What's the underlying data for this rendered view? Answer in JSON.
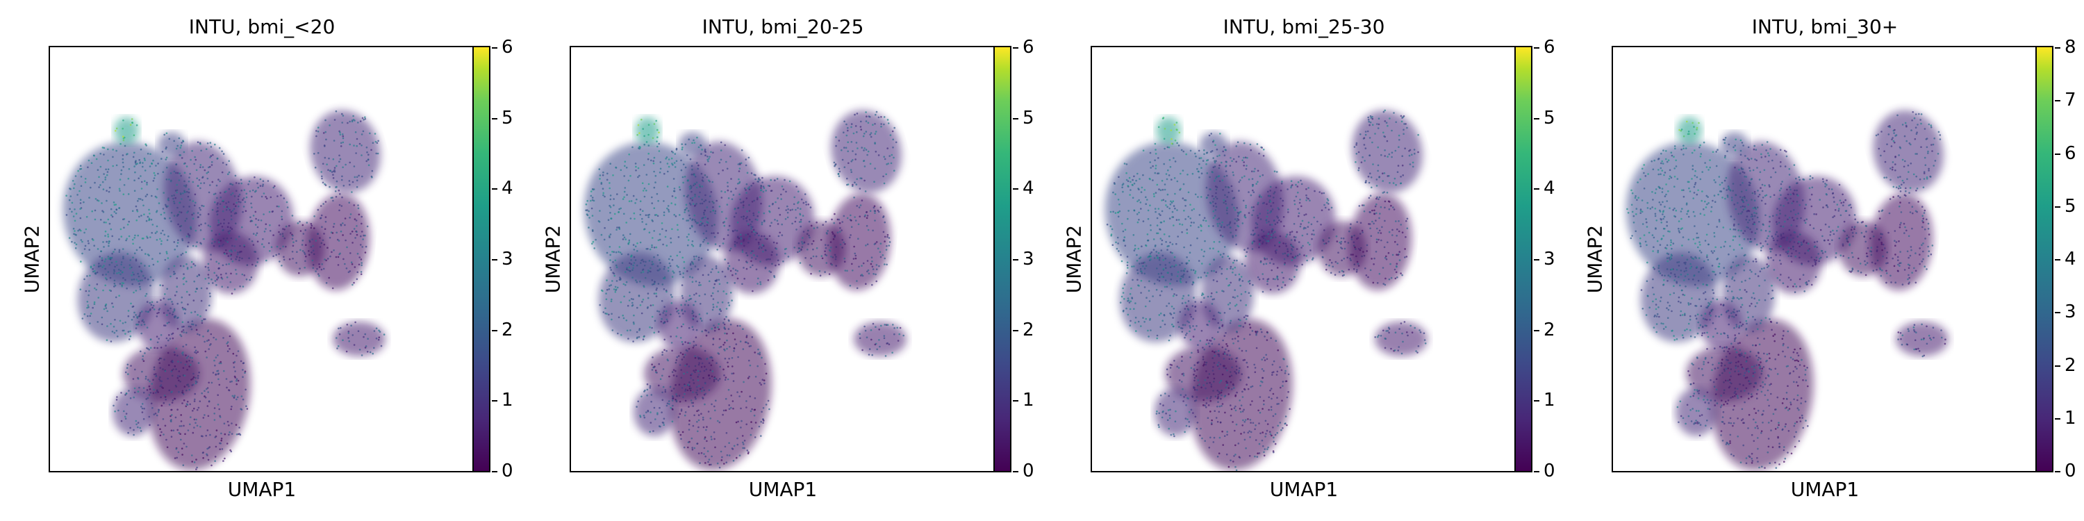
{
  "chart_data": [
    {
      "type": "scatter",
      "title": "INTU, bmi_<20",
      "xlabel": "UMAP1",
      "ylabel": "UMAP2",
      "colorbar": {
        "min": 0,
        "max": 6,
        "ticks": [
          "0",
          "1",
          "2",
          "3",
          "4",
          "5",
          "6"
        ],
        "colormap": "viridis"
      }
    },
    {
      "type": "scatter",
      "title": "INTU, bmi_20-25",
      "xlabel": "UMAP1",
      "ylabel": "UMAP2",
      "colorbar": {
        "min": 0,
        "max": 6,
        "ticks": [
          "0",
          "1",
          "2",
          "3",
          "4",
          "5",
          "6"
        ],
        "colormap": "viridis"
      }
    },
    {
      "type": "scatter",
      "title": "INTU, bmi_25-30",
      "xlabel": "UMAP1",
      "ylabel": "UMAP2",
      "colorbar": {
        "min": 0,
        "max": 6,
        "ticks": [
          "0",
          "1",
          "2",
          "3",
          "4",
          "5",
          "6"
        ],
        "colormap": "viridis"
      }
    },
    {
      "type": "scatter",
      "title": "INTU, bmi_30+",
      "xlabel": "UMAP1",
      "ylabel": "UMAP2",
      "colorbar": {
        "min": 0,
        "max": 8,
        "ticks": [
          "0",
          "1",
          "2",
          "3",
          "4",
          "5",
          "6",
          "7",
          "8"
        ],
        "colormap": "viridis"
      }
    }
  ],
  "colors": {
    "low": "#440154",
    "mid": "#21918c",
    "high": "#fde725"
  }
}
